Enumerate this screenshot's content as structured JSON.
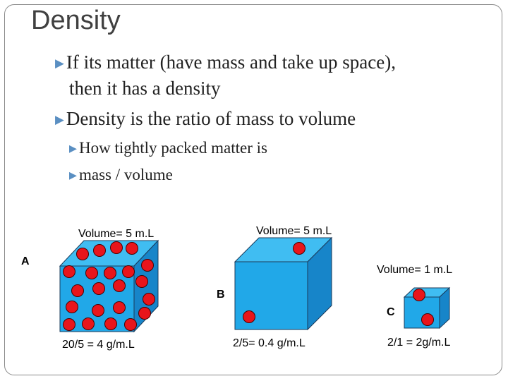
{
  "slide": {
    "title": "Density",
    "bullets": [
      {
        "line1": "If its matter (have mass and take up space),",
        "line2": "then  it has a density"
      },
      {
        "line1": "Density is the ratio of mass to volume"
      }
    ],
    "sub_bullets": [
      "How tightly packed matter is",
      "mass / volume"
    ]
  },
  "figure": {
    "cube_a": {
      "letter": "A",
      "volume_label": "Volume= 5 m.L",
      "density_label": "20/5 = 4 g/m.L"
    },
    "cube_b": {
      "letter": "B",
      "volume_label": "Volume= 5 m.L",
      "density_label": "2/5= 0.4 g/m.L"
    },
    "cube_c": {
      "letter": "C",
      "volume_label": "Volume= 1 m.L",
      "density_label": "2/1 = 2g/m.L"
    },
    "colors": {
      "cube_front": "#21a8e8",
      "cube_side": "#1785c9",
      "cube_top": "#40bdf2",
      "particle": "#e8151b",
      "bullet_arrow": "#5a8fc2"
    }
  }
}
